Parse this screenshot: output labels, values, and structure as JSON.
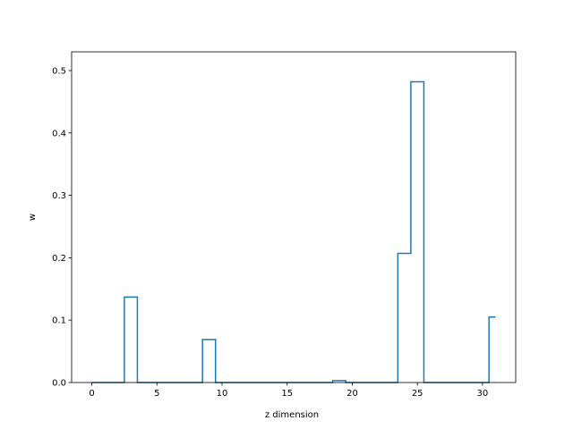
{
  "chart_data": {
    "type": "line",
    "subtype": "step",
    "xlabel": "z dimension",
    "ylabel": "w",
    "xlim": [
      -1.55,
      32.55
    ],
    "ylim": [
      0,
      0.53
    ],
    "grid": false,
    "line_color": "#1f77b4",
    "x_ticks": [
      0,
      5,
      10,
      15,
      20,
      25,
      30
    ],
    "x_tick_labels": [
      "0",
      "5",
      "10",
      "15",
      "20",
      "25",
      "30"
    ],
    "y_ticks": [
      0.0,
      0.1,
      0.2,
      0.3,
      0.4,
      0.5
    ],
    "y_tick_labels": [
      "0.0",
      "0.1",
      "0.2",
      "0.3",
      "0.4",
      "0.5"
    ],
    "x": [
      0,
      1,
      2,
      3,
      4,
      5,
      6,
      7,
      8,
      9,
      10,
      11,
      12,
      13,
      14,
      15,
      16,
      17,
      18,
      19,
      20,
      21,
      22,
      23,
      24,
      25,
      26,
      27,
      28,
      29,
      30,
      31
    ],
    "values": [
      0,
      0,
      0,
      0.137,
      0,
      0,
      0,
      0,
      0,
      0.069,
      0,
      0,
      0,
      0,
      0,
      0,
      0,
      0,
      0,
      0.003,
      0,
      0,
      0,
      0,
      0.207,
      0.482,
      0,
      0,
      0,
      0,
      0,
      0.105
    ]
  }
}
